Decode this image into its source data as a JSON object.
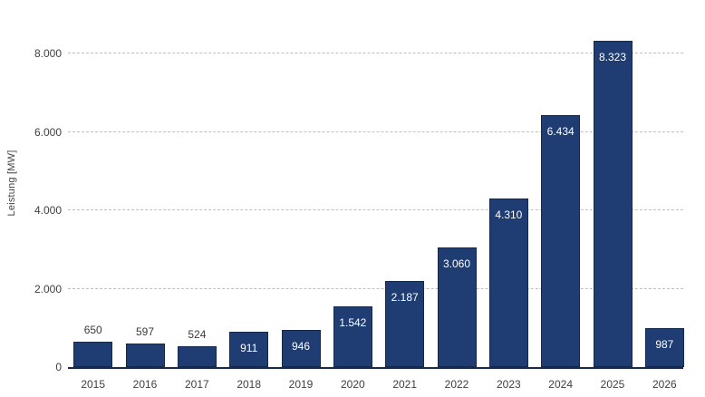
{
  "chart_data": {
    "type": "bar",
    "title": "",
    "xlabel": "",
    "ylabel": "Leistung [MW]",
    "categories": [
      "2015",
      "2016",
      "2017",
      "2018",
      "2019",
      "2020",
      "2021",
      "2022",
      "2023",
      "2024",
      "2025",
      "2026"
    ],
    "values": [
      650,
      597,
      524,
      911,
      946,
      1542,
      2187,
      3060,
      4310,
      6434,
      8323,
      987
    ],
    "value_labels": [
      "650",
      "597",
      "524",
      "911",
      "946",
      "1.542",
      "2.187",
      "3.060",
      "4.310",
      "6.434",
      "8.323",
      "987"
    ],
    "label_positions": [
      "outside",
      "outside",
      "outside",
      "inside",
      "inside",
      "inside",
      "inside",
      "inside",
      "inside",
      "inside",
      "inside",
      "inside"
    ],
    "y_ticks": [
      {
        "value": 0,
        "label": "0"
      },
      {
        "value": 2000,
        "label": "2.000"
      },
      {
        "value": 4000,
        "label": "4.000"
      },
      {
        "value": 6000,
        "label": "6.000"
      },
      {
        "value": 8000,
        "label": "8.000"
      }
    ],
    "ylim": [
      0,
      9000
    ],
    "grid": "horizontal-dashed",
    "legend": "none",
    "colors": {
      "bar_fill": "#1F3C73",
      "bar_border": "#15294E",
      "gridline": "#BFBFBF",
      "axis_line": "#16294F",
      "tick_text": "#404040",
      "label_inside": "#FFFFFF",
      "label_outside": "#3A3A3A"
    }
  }
}
